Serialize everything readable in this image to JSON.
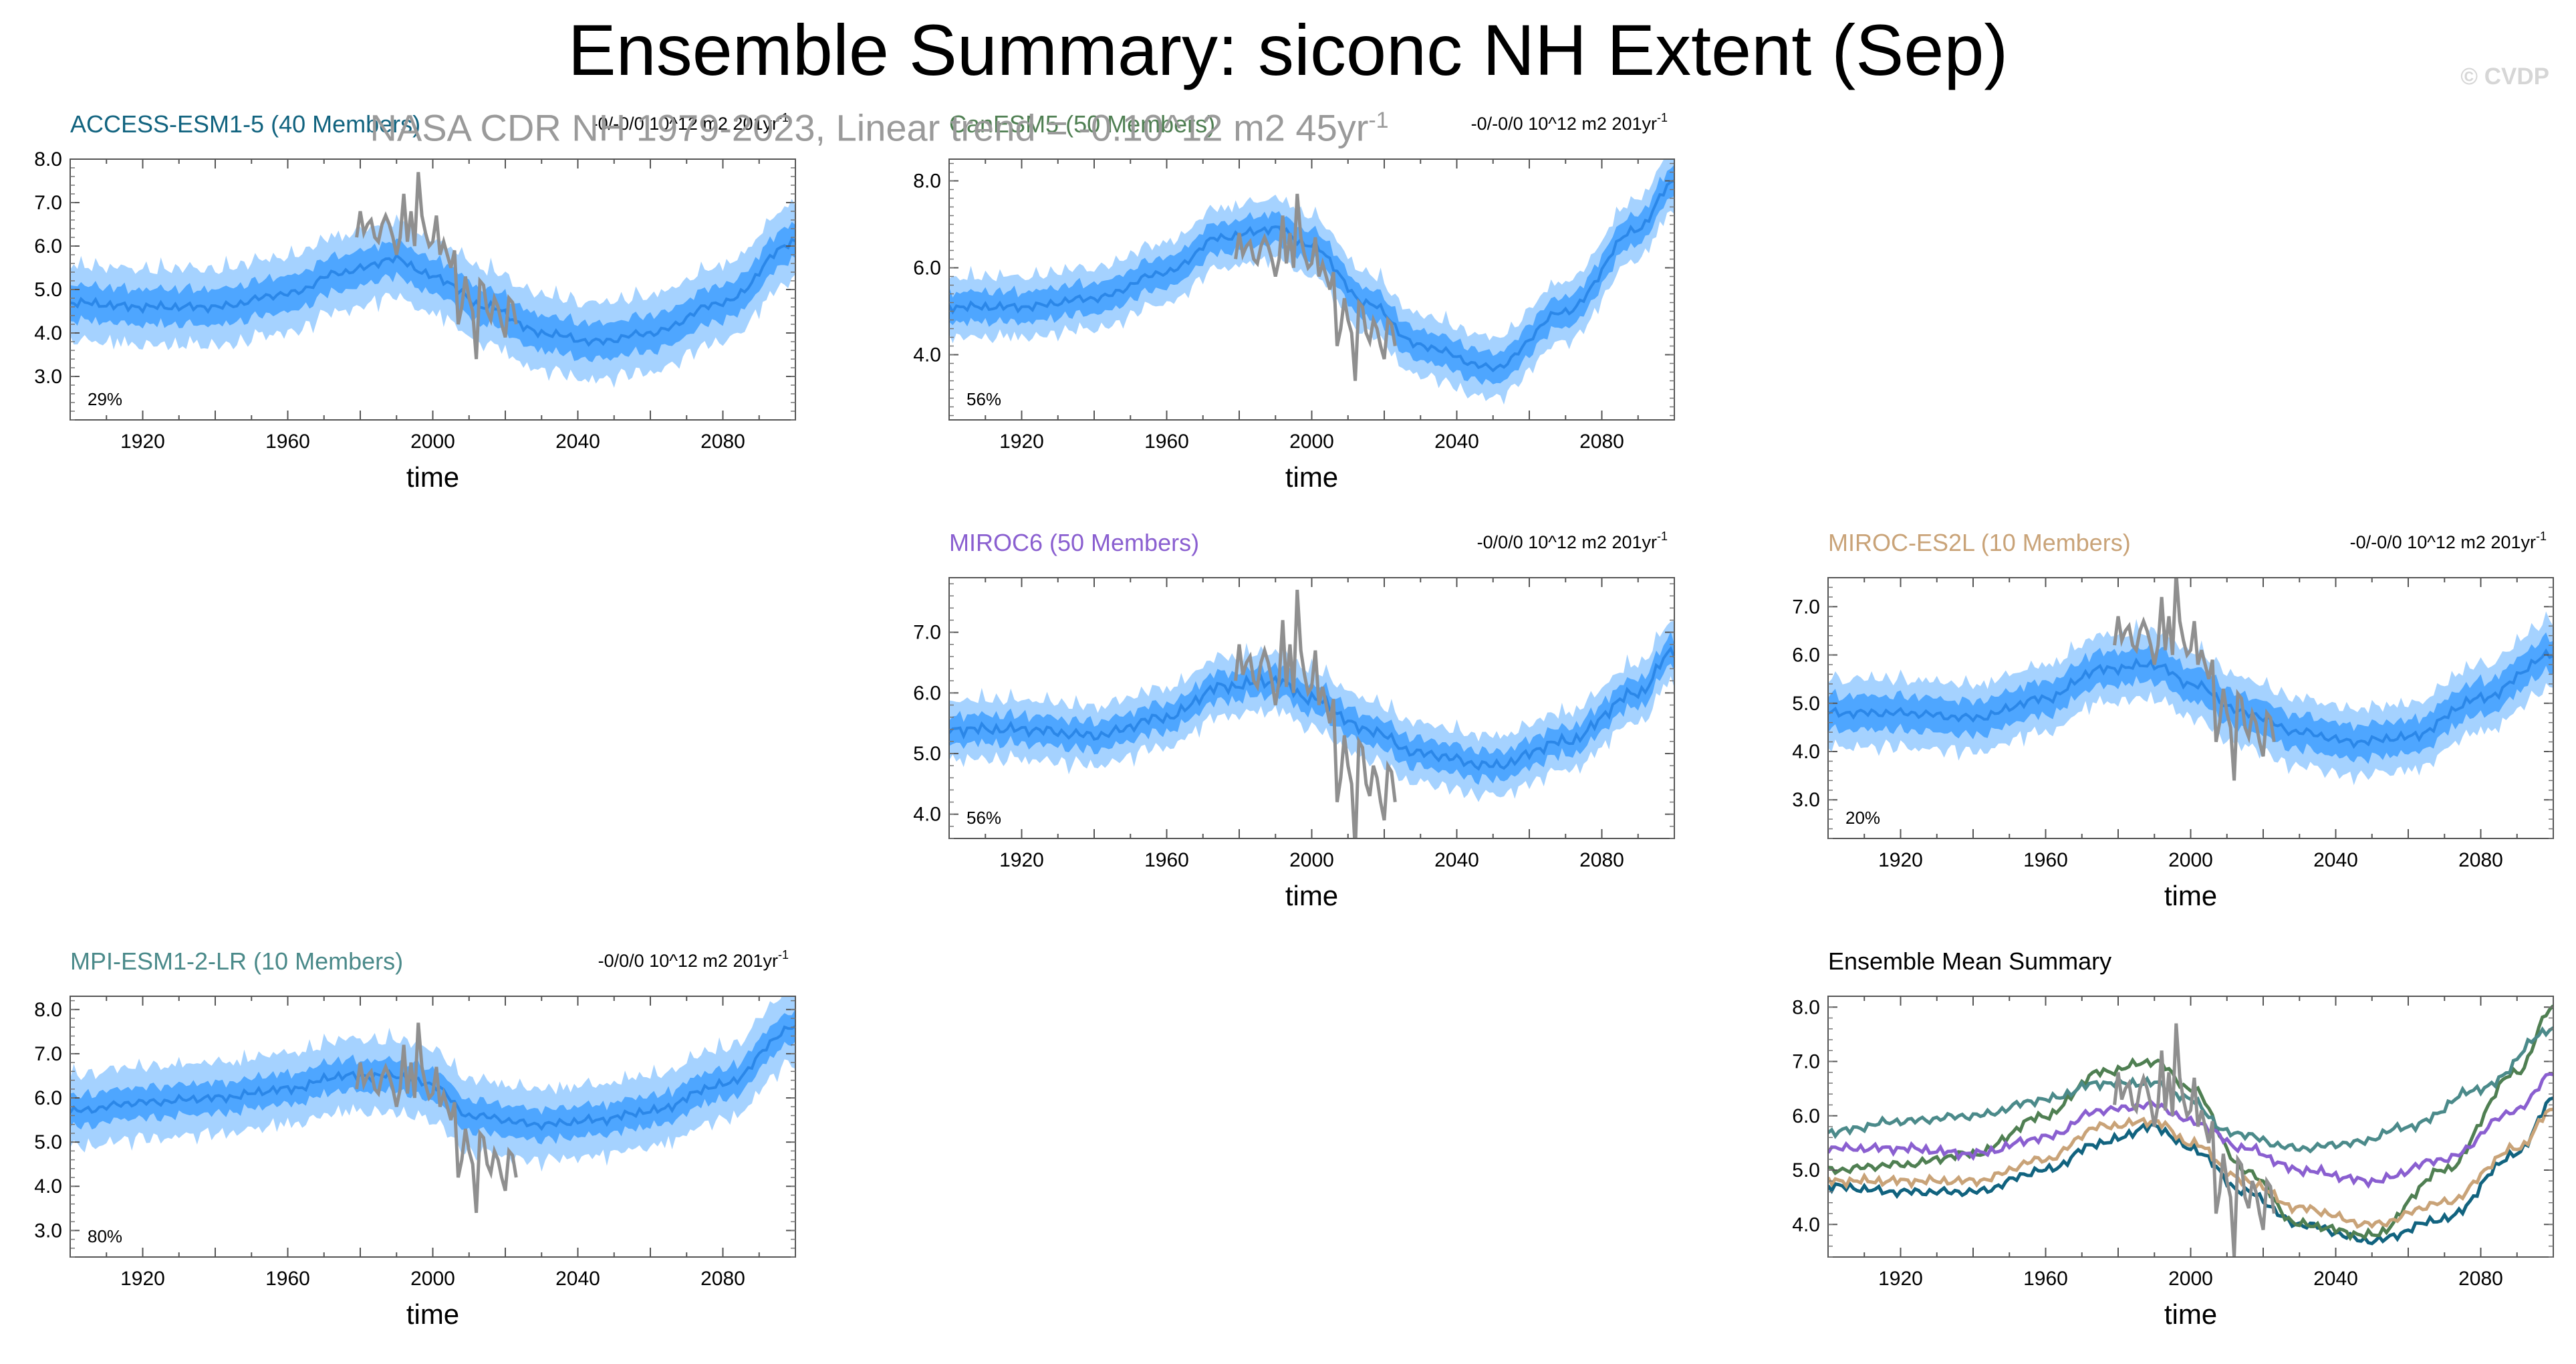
{
  "title": "Ensemble Summary: siconc NH Extent (Sep)",
  "subtitle": "NASA CDR NH 1979-2023, Linear trend = -0.10^12 m2 45yr",
  "subtitle_sup": "-1",
  "watermark": "© CVDP",
  "colors": {
    "band_outer": "#a5d2ff",
    "band_inner": "#4ea6ff",
    "ens_mean": "#2b87e8",
    "observed": "#8f8f8f"
  },
  "chart_data": [
    {
      "type": "line",
      "title": "ACCESS-ESM1-5 (40 Members)",
      "title_color": "#11637f",
      "trend_text": "-0/-0/0 10^12 m2 201yr",
      "trend_sup": "-1",
      "percent_label": "29%",
      "xlabel": "time",
      "xlim": [
        1900,
        2100
      ],
      "ylim": [
        2.0,
        8.0
      ],
      "yticks": [
        "3.0",
        "4.0",
        "5.0",
        "6.0",
        "7.0",
        "8.0"
      ],
      "xticks": [
        "1920",
        "1960",
        "2000",
        "2040",
        "2080"
      ],
      "ensemble_mean": {
        "x": [
          1900,
          1920,
          1940,
          1960,
          1975,
          1990,
          2000,
          2015,
          2030,
          2045,
          2060,
          2080,
          2100
        ],
        "y": [
          4.7,
          4.6,
          4.6,
          4.9,
          5.4,
          5.7,
          5.3,
          4.6,
          4.0,
          3.8,
          4.0,
          4.7,
          6.1
        ]
      },
      "inner_halfwidth": 0.35,
      "outer_halfwidth": 0.75
    },
    {
      "type": "line",
      "title": "CanESM5 (50 Members)",
      "title_color": "#4f7f52",
      "trend_text": "-0/-0/0 10^12 m2 201yr",
      "trend_sup": "-1",
      "percent_label": "56%",
      "xlabel": "time",
      "xlim": [
        1900,
        2100
      ],
      "ylim": [
        2.5,
        8.5
      ],
      "yticks": [
        "4.0",
        "6.0",
        "8.0"
      ],
      "xticks": [
        "1920",
        "1960",
        "2000",
        "2040",
        "2080"
      ],
      "ensemble_mean": {
        "x": [
          1900,
          1920,
          1940,
          1960,
          1975,
          1990,
          2000,
          2015,
          2030,
          2050,
          2070,
          2090,
          2100
        ],
        "y": [
          5.1,
          5.1,
          5.3,
          5.9,
          6.7,
          6.9,
          6.5,
          5.2,
          4.2,
          3.7,
          5.0,
          6.9,
          8.0
        ]
      },
      "inner_halfwidth": 0.3,
      "outer_halfwidth": 0.6
    },
    {
      "type": "line",
      "title": "MIROC6 (50 Members)",
      "title_color": "#8a5fd0",
      "trend_text": "-0/0/0 10^12 m2 201yr",
      "trend_sup": "-1",
      "percent_label": "56%",
      "xlabel": "time",
      "xlim": [
        1900,
        2100
      ],
      "ylim": [
        3.6,
        7.9
      ],
      "yticks": [
        "4.0",
        "5.0",
        "6.0",
        "7.0"
      ],
      "xticks": [
        "1920",
        "1960",
        "2000",
        "2040",
        "2080"
      ],
      "ensemble_mean": {
        "x": [
          1900,
          1920,
          1940,
          1960,
          1975,
          1990,
          2000,
          2015,
          2030,
          2050,
          2070,
          2090,
          2100
        ],
        "y": [
          5.4,
          5.4,
          5.3,
          5.6,
          6.1,
          6.2,
          5.9,
          5.4,
          5.0,
          4.8,
          5.2,
          6.0,
          6.7
        ]
      },
      "inner_halfwidth": 0.2,
      "outer_halfwidth": 0.42
    },
    {
      "type": "line",
      "title": "MIROC-ES2L (10 Members)",
      "title_color": "#c9a378",
      "trend_text": "-0/-0/0 10^12 m2 201yr",
      "trend_sup": "-1",
      "percent_label": "20%",
      "xlabel": "time",
      "xlim": [
        1900,
        2100
      ],
      "ylim": [
        2.2,
        7.6
      ],
      "yticks": [
        "3.0",
        "4.0",
        "5.0",
        "6.0",
        "7.0"
      ],
      "xticks": [
        "1920",
        "1960",
        "2000",
        "2040",
        "2080"
      ],
      "ensemble_mean": {
        "x": [
          1900,
          1920,
          1940,
          1960,
          1975,
          1990,
          2000,
          2015,
          2030,
          2045,
          2060,
          2080,
          2100
        ],
        "y": [
          4.8,
          4.8,
          4.7,
          5.1,
          5.7,
          5.8,
          5.4,
          4.8,
          4.4,
          4.2,
          4.3,
          5.1,
          6.0
        ]
      },
      "inner_halfwidth": 0.3,
      "outer_halfwidth": 0.6
    },
    {
      "type": "line",
      "title": "MPI-ESM1-2-LR (10 Members)",
      "title_color": "#4b8a8a",
      "trend_text": "-0/0/0 10^12 m2 201yr",
      "trend_sup": "-1",
      "percent_label": "80%",
      "xlabel": "time",
      "xlim": [
        1900,
        2100
      ],
      "ylim": [
        2.4,
        8.3
      ],
      "yticks": [
        "3.0",
        "4.0",
        "5.0",
        "6.0",
        "7.0",
        "8.0"
      ],
      "xticks": [
        "1920",
        "1960",
        "2000",
        "2040",
        "2080"
      ],
      "ensemble_mean": {
        "x": [
          1900,
          1920,
          1940,
          1960,
          1975,
          1990,
          2000,
          2010,
          2030,
          2045,
          2060,
          2080,
          2100
        ],
        "y": [
          5.7,
          5.9,
          6.0,
          6.2,
          6.5,
          6.5,
          6.3,
          5.6,
          5.4,
          5.5,
          5.7,
          6.3,
          7.6
        ]
      },
      "inner_halfwidth": 0.3,
      "outer_halfwidth": 0.7
    },
    {
      "type": "line",
      "title": "Ensemble Mean Summary",
      "title_color": "#000000",
      "xlabel": "time",
      "xlim": [
        1900,
        2100
      ],
      "ylim": [
        3.4,
        8.2
      ],
      "yticks": [
        "4.0",
        "5.0",
        "6.0",
        "7.0",
        "8.0"
      ],
      "xticks": [
        "1920",
        "1960",
        "2000",
        "2040",
        "2080"
      ],
      "series": [
        {
          "name": "ACCESS-ESM1-5",
          "color": "#11637f",
          "x": [
            1900,
            1920,
            1940,
            1960,
            1975,
            1990,
            2000,
            2015,
            2030,
            2050,
            2070,
            2090,
            2100
          ],
          "y": [
            4.7,
            4.6,
            4.6,
            5.0,
            5.5,
            5.8,
            5.4,
            4.6,
            4.0,
            3.7,
            4.1,
            5.3,
            6.3
          ]
        },
        {
          "name": "CanESM5",
          "color": "#4f7f52",
          "x": [
            1900,
            1920,
            1940,
            1960,
            1975,
            1990,
            2000,
            2015,
            2030,
            2050,
            2070,
            2090,
            2100
          ],
          "y": [
            5.0,
            5.1,
            5.3,
            6.0,
            6.8,
            7.0,
            6.5,
            5.0,
            4.0,
            3.8,
            5.0,
            6.8,
            8.0
          ]
        },
        {
          "name": "MIROC6",
          "color": "#8a5fd0",
          "x": [
            1900,
            1920,
            1940,
            1960,
            1975,
            1990,
            2000,
            2015,
            2030,
            2050,
            2070,
            2090,
            2100
          ],
          "y": [
            5.4,
            5.4,
            5.3,
            5.6,
            6.1,
            6.2,
            5.9,
            5.4,
            5.0,
            4.8,
            5.2,
            6.1,
            6.8
          ]
        },
        {
          "name": "MIROC-ES2L",
          "color": "#c9a378",
          "x": [
            1900,
            1920,
            1940,
            1960,
            1975,
            1990,
            2000,
            2015,
            2030,
            2050,
            2070,
            2090,
            2100
          ],
          "y": [
            4.8,
            4.8,
            4.8,
            5.2,
            5.8,
            5.9,
            5.5,
            4.8,
            4.3,
            4.0,
            4.4,
            5.4,
            6.1
          ]
        },
        {
          "name": "MPI-ESM1-2-LR",
          "color": "#4b8a8a",
          "x": [
            1900,
            1920,
            1940,
            1960,
            1975,
            1990,
            2000,
            2010,
            2030,
            2045,
            2060,
            2080,
            2100
          ],
          "y": [
            5.7,
            5.9,
            6.0,
            6.3,
            6.6,
            6.6,
            6.3,
            5.7,
            5.4,
            5.5,
            5.8,
            6.5,
            7.6
          ]
        }
      ]
    }
  ],
  "observed": {
    "name": "NASA CDR NH",
    "x": [
      1979,
      1980,
      1981,
      1982,
      1983,
      1984,
      1985,
      1986,
      1987,
      1988,
      1989,
      1990,
      1991,
      1992,
      1993,
      1994,
      1995,
      1996,
      1997,
      1998,
      1999,
      2000,
      2001,
      2002,
      2003,
      2004,
      2005,
      2006,
      2007,
      2008,
      2009,
      2010,
      2011,
      2012,
      2013,
      2014,
      2015,
      2016,
      2017,
      2018,
      2019,
      2020,
      2021,
      2022,
      2023
    ],
    "y": [
      6.2,
      6.8,
      6.3,
      6.5,
      6.6,
      6.2,
      6.1,
      6.5,
      6.7,
      6.5,
      6.2,
      5.8,
      6.2,
      7.2,
      6.1,
      6.8,
      6.0,
      7.7,
      6.7,
      6.3,
      6.0,
      6.1,
      6.7,
      5.8,
      6.1,
      5.8,
      5.5,
      5.9,
      4.2,
      4.6,
      5.3,
      4.8,
      4.5,
      3.4,
      5.2,
      5.1,
      4.5,
      4.3,
      4.8,
      4.6,
      4.2,
      3.9,
      4.8,
      4.7,
      4.2
    ]
  }
}
